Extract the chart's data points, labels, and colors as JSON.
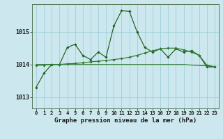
{
  "title": "Graphe pression niveau de la mer (hPa)",
  "background_color": "#cce8ee",
  "grid_color": "#9fcfda",
  "line_color_jagged": "#1e5c1e",
  "line_color_smooth": "#2e7a2e",
  "x_labels": [
    "0",
    "1",
    "2",
    "3",
    "4",
    "5",
    "6",
    "7",
    "8",
    "9",
    "10",
    "11",
    "12",
    "13",
    "14",
    "15",
    "16",
    "17",
    "18",
    "19",
    "20",
    "21",
    "22",
    "23"
  ],
  "y_ticks": [
    1013,
    1014,
    1015
  ],
  "ylim": [
    1012.65,
    1015.85
  ],
  "xlim": [
    -0.5,
    23.5
  ],
  "series_jagged": [
    1013.3,
    1013.73,
    1014.0,
    1014.0,
    1014.52,
    1014.62,
    1014.28,
    1014.15,
    1014.38,
    1014.22,
    1015.18,
    1015.65,
    1015.63,
    1015.0,
    1014.52,
    1014.38,
    1014.48,
    1014.22,
    1014.48,
    1014.38,
    1014.42,
    1014.28,
    1013.92,
    1013.92
  ],
  "series_smooth": [
    1013.97,
    1013.98,
    1014.0,
    1014.0,
    1014.02,
    1014.03,
    1014.05,
    1014.08,
    1014.1,
    1014.12,
    1014.15,
    1014.18,
    1014.22,
    1014.28,
    1014.35,
    1014.42,
    1014.48,
    1014.5,
    1014.5,
    1014.45,
    1014.38,
    1014.28,
    1013.98,
    1013.93
  ],
  "series_flat": [
    1014.0,
    1014.0,
    1014.0,
    1014.0,
    1014.0,
    1014.0,
    1014.0,
    1014.0,
    1014.0,
    1014.0,
    1014.0,
    1014.0,
    1014.0,
    1014.0,
    1014.0,
    1014.0,
    1014.0,
    1014.0,
    1014.0,
    1014.0,
    1013.98,
    1013.97,
    1013.96,
    1013.92
  ]
}
